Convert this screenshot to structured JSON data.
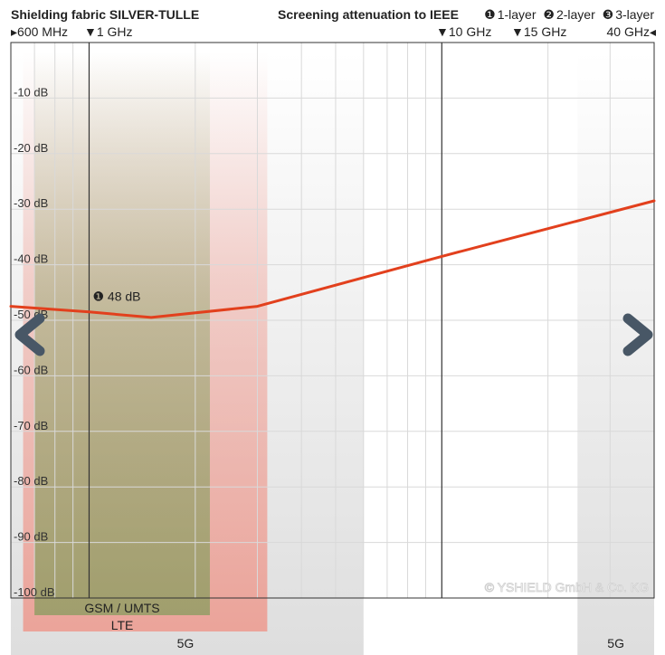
{
  "header": {
    "title": "Shielding fabric SILVER-TULLE",
    "subtitle": "Screening attenuation to IEEE",
    "layers": [
      {
        "marker": "❶",
        "label": "1-layer"
      },
      {
        "marker": "❷",
        "label": "2-layer"
      },
      {
        "marker": "❸",
        "label": "3-layer"
      }
    ]
  },
  "freq_markers": [
    {
      "label": "▸600 MHz",
      "freq_ghz": 0.6
    },
    {
      "label": "▼1 GHz",
      "freq_ghz": 1
    },
    {
      "label": "▼10 GHz",
      "freq_ghz": 10
    },
    {
      "label": "▼15 GHz",
      "freq_ghz": 15
    },
    {
      "label": "40 GHz◂",
      "freq_ghz": 40
    }
  ],
  "chart_data": {
    "type": "line",
    "x_scale": "log",
    "xlim": [
      0.6,
      40
    ],
    "x_unit": "GHz",
    "ylim": [
      -100,
      0
    ],
    "y_unit": "dB",
    "yticks": [
      {
        "value": -10,
        "label": "-10 dB"
      },
      {
        "value": -20,
        "label": "-20 dB"
      },
      {
        "value": -30,
        "label": "-30 dB"
      },
      {
        "value": -40,
        "label": "-40 dB"
      },
      {
        "value": -50,
        "label": "-50 dB"
      },
      {
        "value": -60,
        "label": "-60 dB"
      },
      {
        "value": -70,
        "label": "-70 dB"
      },
      {
        "value": -80,
        "label": "-80 dB"
      },
      {
        "value": -90,
        "label": "-90 dB"
      },
      {
        "value": -100,
        "label": "-100 dB"
      }
    ],
    "grid": true,
    "series": [
      {
        "name": "1-layer",
        "color": "#e2401d",
        "x": [
          0.6,
          1,
          1.5,
          3,
          10,
          40
        ],
        "y": [
          -47.5,
          -48.5,
          -49.5,
          -47.5,
          -38.5,
          -28.5
        ]
      }
    ],
    "annotation": {
      "label": "❶ 48 dB",
      "x": 1,
      "y": -48
    },
    "bands": [
      {
        "label": "GSM / UMTS",
        "from_ghz": 0.7,
        "to_ghz": 2.2,
        "color": "#6e9a4e"
      },
      {
        "label": "LTE",
        "from_ghz": 0.65,
        "to_ghz": 3.2,
        "color": "#f08a7c"
      },
      {
        "label": "5G",
        "from_ghz": 0.6,
        "to_ghz": 6,
        "color": "#c8c8c8"
      },
      {
        "label": "5G",
        "from_ghz": 24.25,
        "to_ghz": 40,
        "color": "#c8c8c8"
      }
    ]
  },
  "watermark": "© YSHIELD GmbH & Co. KG",
  "nav": {
    "prev_icon": "chevron-left-icon",
    "next_icon": "chevron-right-icon"
  }
}
